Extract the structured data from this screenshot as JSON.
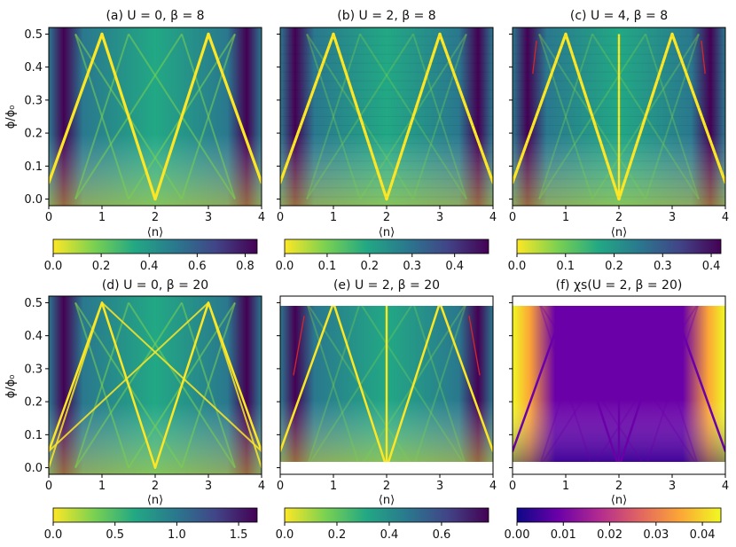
{
  "chart_data": {
    "type": "heatmap",
    "colormaps": {
      "viridis_r": [
        "#fde725",
        "#7ad151",
        "#22a884",
        "#2a788e",
        "#414487",
        "#440154"
      ],
      "plasma": [
        "#0d0887",
        "#6a00a8",
        "#b12a90",
        "#e16462",
        "#fca636",
        "#f0f921"
      ]
    },
    "ylabel": "ϕ/ϕ₀",
    "xlabel": "⟨n⟩",
    "x_ticks": [
      "0",
      "1",
      "2",
      "3",
      "4"
    ],
    "panels": [
      {
        "id": "a",
        "title": "(a) U = 0, β = 8",
        "xlim": [
          0,
          4
        ],
        "ylim": [
          -0.02,
          0.52
        ],
        "y_ticks": [
          "0.0",
          "0.1",
          "0.2",
          "0.3",
          "0.4",
          "0.5"
        ],
        "show_ylabel": true,
        "colormap": "viridis_r",
        "cbar_ticks": [
          "0.0",
          "0.2",
          "0.4",
          "0.6",
          "0.8"
        ],
        "cbar_range": [
          0,
          0.85
        ]
      },
      {
        "id": "b",
        "title": "(b) U = 2, β = 8",
        "xlim": [
          0,
          4
        ],
        "ylim": [
          -0.02,
          0.52
        ],
        "y_ticks": [],
        "show_ylabel": false,
        "colormap": "viridis_r",
        "cbar_ticks": [
          "0.0",
          "0.1",
          "0.2",
          "0.3",
          "0.4"
        ],
        "cbar_range": [
          0,
          0.48
        ]
      },
      {
        "id": "c",
        "title": "(c) U = 4, β = 8",
        "xlim": [
          0,
          4
        ],
        "ylim": [
          -0.02,
          0.52
        ],
        "y_ticks": [],
        "show_ylabel": false,
        "colormap": "viridis_r",
        "cbar_ticks": [
          "0.0",
          "0.1",
          "0.2",
          "0.3",
          "0.4"
        ],
        "cbar_range": [
          0,
          0.42
        ]
      },
      {
        "id": "d",
        "title": "(d) U = 0, β = 20",
        "xlim": [
          0,
          4
        ],
        "ylim": [
          -0.02,
          0.52
        ],
        "y_ticks": [
          "0.0",
          "0.1",
          "0.2",
          "0.3",
          "0.4",
          "0.5"
        ],
        "show_ylabel": true,
        "colormap": "viridis_r",
        "cbar_ticks": [
          "0.0",
          "0.5",
          "1.0",
          "1.5"
        ],
        "cbar_range": [
          0,
          1.65
        ]
      },
      {
        "id": "e",
        "title": "(e) U = 2, β = 20",
        "xlim": [
          0,
          4
        ],
        "ylim": [
          -0.02,
          0.52
        ],
        "y_ticks": [],
        "show_ylabel": false,
        "colormap": "viridis_r",
        "cbar_ticks": [
          "0.0",
          "0.2",
          "0.4",
          "0.6"
        ],
        "cbar_range": [
          0,
          0.78
        ]
      },
      {
        "id": "f",
        "title": "(f)  χs(U = 2, β = 20)",
        "xlim": [
          0,
          4
        ],
        "ylim": [
          -0.02,
          0.52
        ],
        "y_ticks": [],
        "show_ylabel": false,
        "colormap": "plasma",
        "cbar_ticks": [
          "0.00",
          "0.01",
          "0.02",
          "0.03",
          "0.04"
        ],
        "cbar_range": [
          0,
          0.044
        ]
      }
    ]
  }
}
